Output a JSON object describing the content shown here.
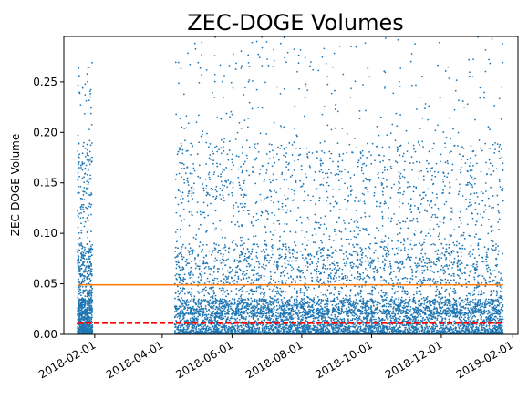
{
  "chart_data": {
    "type": "scatter",
    "title": "ZEC-DOGE Volumes",
    "xlabel": "",
    "ylabel": "ZEC-DOGE Volume",
    "x_axis": {
      "type": "date",
      "range": [
        "2018-01-05",
        "2019-02-06"
      ],
      "ticks": [
        "2018-02-01",
        "2018-04-01",
        "2018-06-01",
        "2018-08-01",
        "2018-10-01",
        "2018-12-01",
        "2019-02-01"
      ]
    },
    "y_axis": {
      "range": [
        0,
        0.295
      ],
      "ticks": [
        0.0,
        0.05,
        0.1,
        0.15,
        0.2,
        0.25
      ],
      "tick_labels": [
        "0.00",
        "0.05",
        "0.10",
        "0.15",
        "0.20",
        "0.25"
      ]
    },
    "grid": false,
    "series": [
      {
        "kind": "points",
        "color": "#1f77b4",
        "segments": [
          {
            "start": "2018-01-17",
            "end": "2018-01-30",
            "peak": 0.28
          },
          {
            "start": "2018-04-12",
            "end": "2019-01-24",
            "peak": 0.295
          }
        ]
      }
    ],
    "reference_lines": [
      {
        "y": 0.049,
        "x_start": "2018-01-17",
        "x_end": "2019-01-24",
        "color": "#ff7f0e",
        "style": "solid"
      },
      {
        "y": 0.011,
        "x_start": "2018-01-17",
        "x_end": "2019-01-24",
        "color": "#ff0000",
        "style": "dashed"
      }
    ]
  }
}
